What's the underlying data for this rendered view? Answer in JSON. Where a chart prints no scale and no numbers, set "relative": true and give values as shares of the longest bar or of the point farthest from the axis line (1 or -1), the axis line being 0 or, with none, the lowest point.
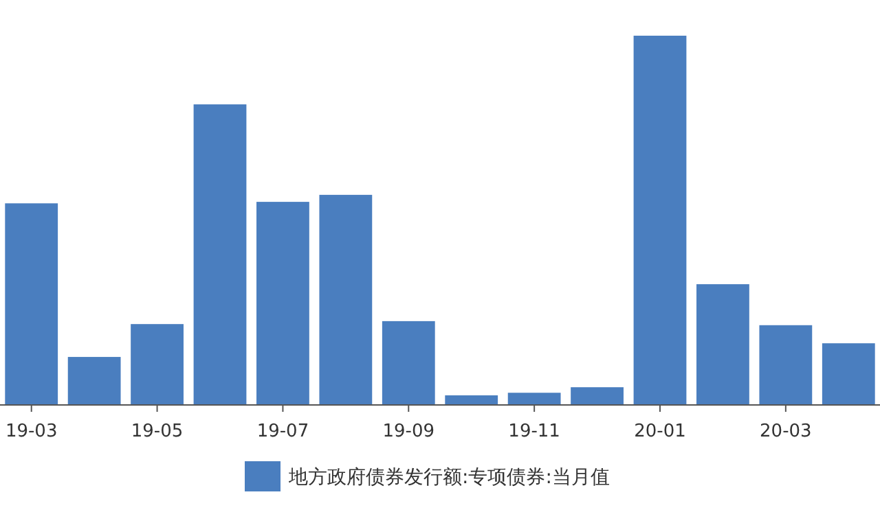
{
  "chart_data": {
    "type": "bar",
    "relative": true,
    "legend": "bottom",
    "categories": [
      "19-03",
      null,
      "19-05",
      null,
      "19-07",
      null,
      "19-09",
      null,
      "19-11",
      null,
      "20-01",
      null,
      "20-03",
      null
    ],
    "series": [
      {
        "name": "地方政府债券发行额:专项债券:当月值",
        "color": "#4a7ebf",
        "values": [
          0.546,
          0.13,
          0.219,
          0.814,
          0.55,
          0.569,
          0.227,
          0.026,
          0.033,
          0.048,
          1,
          0.327,
          0.216,
          0.167
        ]
      }
    ]
  }
}
